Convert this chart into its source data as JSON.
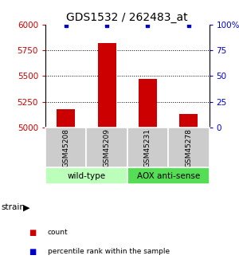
{
  "title": "GDS1532 / 262483_at",
  "samples": [
    "GSM45208",
    "GSM45209",
    "GSM45231",
    "GSM45278"
  ],
  "counts": [
    5180,
    5820,
    5470,
    5130
  ],
  "percentiles": [
    99,
    99,
    99,
    99
  ],
  "ylim_left": [
    5000,
    6000
  ],
  "ylim_right": [
    0,
    100
  ],
  "yticks_left": [
    5000,
    5250,
    5500,
    5750,
    6000
  ],
  "yticks_right": [
    0,
    25,
    50,
    75,
    100
  ],
  "bar_color": "#cc0000",
  "dot_color": "#0000cc",
  "bar_width": 0.45,
  "groups": [
    {
      "label": "wild-type",
      "indices": [
        0,
        1
      ],
      "color": "#bbffbb"
    },
    {
      "label": "AOX anti-sense",
      "indices": [
        2,
        3
      ],
      "color": "#55dd55"
    }
  ],
  "strain_label": "strain",
  "legend_items": [
    {
      "label": "count",
      "color": "#cc0000"
    },
    {
      "label": "percentile rank within the sample",
      "color": "#0000cc"
    }
  ],
  "left_tick_color": "#cc0000",
  "right_tick_color": "#0000cc",
  "background_color": "#ffffff",
  "grid_color": "#000000",
  "sample_box_color": "#cccccc"
}
